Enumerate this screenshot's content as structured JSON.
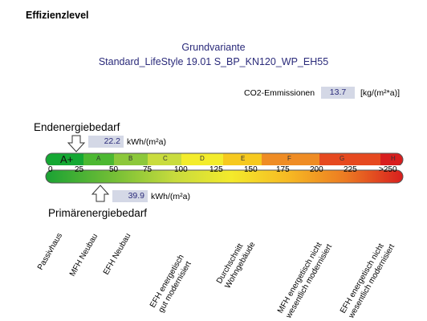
{
  "section_title": "Effizienzlevel",
  "variant": {
    "title": "Grundvariante",
    "name": "Standard_LifeStyle 19.01 S_BP_KN120_WP_EH55"
  },
  "co2": {
    "label": "CO2-Emmissionen",
    "value": "13.7",
    "unit": "[kg/(m²*a)]"
  },
  "endenergie": {
    "title": "Endenergiebedarf",
    "value": "22.2",
    "unit": "kWh/(m²a)",
    "scale_value": 22.2
  },
  "primaerenergie": {
    "title": "Primärenergiebedarf",
    "value": "39.9",
    "unit": "kWh/(m²a)",
    "scale_value": 39.9
  },
  "scale": {
    "classes": [
      "A+",
      "A",
      "B",
      "C",
      "D",
      "E",
      "F",
      "G",
      "H"
    ],
    "ticks": [
      "0",
      "25",
      "50",
      "75",
      "100",
      "125",
      "150",
      "175",
      "200",
      "225",
      ">250"
    ],
    "colors": [
      "#14a833",
      "#4cb831",
      "#8cc83a",
      "#c9dc3e",
      "#f3ec2c",
      "#f6c91f",
      "#ef8c24",
      "#e6491f",
      "#d81e1e"
    ]
  },
  "reference_labels": [
    {
      "line1": "Passivhaus",
      "line2": ""
    },
    {
      "line1": "MFH Neubau",
      "line2": ""
    },
    {
      "line1": "EFH Neubau",
      "line2": ""
    },
    {
      "line1": "EFH energetisch",
      "line2": "gut modernisiert"
    },
    {
      "line1": "Durchschnitt",
      "line2": "Wohngebäude"
    },
    {
      "line1": "MFH energetisch nicht",
      "line2": "wesentlich modernisiert"
    },
    {
      "line1": "EFH energetisch nicht",
      "line2": "wesentlich modernisiert"
    }
  ]
}
